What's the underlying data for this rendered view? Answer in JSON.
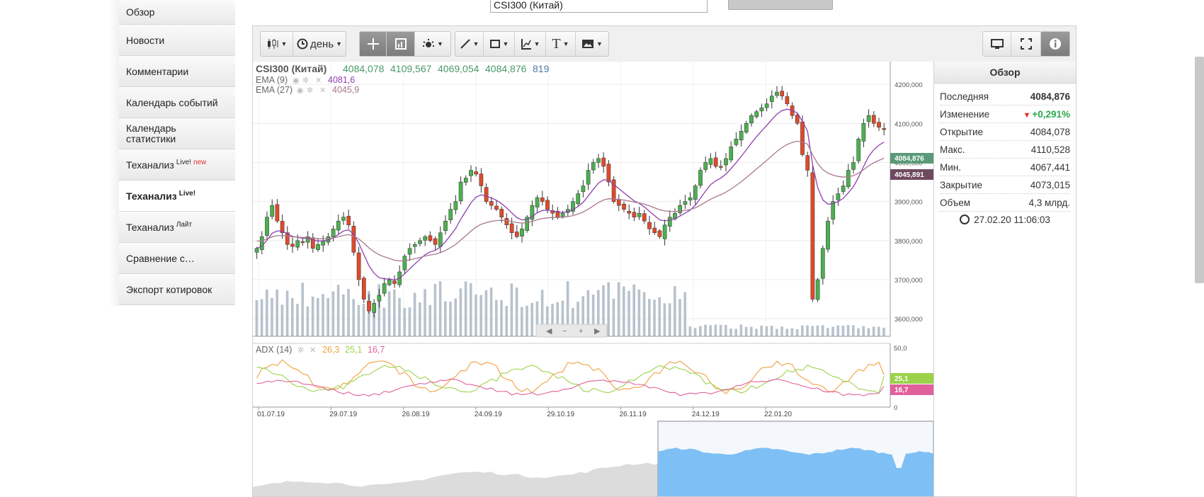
{
  "nav": {
    "items": [
      {
        "label": "Обзор"
      },
      {
        "label": "Новости"
      },
      {
        "label": "Комментарии"
      },
      {
        "label": "Календарь событий"
      },
      {
        "label": "Календарь статистики"
      },
      {
        "label": "Теханализ",
        "sup": "Live!",
        "badge": "new"
      },
      {
        "label": "Теханализ",
        "sup": "Live!",
        "active": true
      },
      {
        "label": "Теханализ",
        "sup": "Лайт"
      },
      {
        "label": "Сравнение с…"
      },
      {
        "label": "Экспорт котировок"
      }
    ]
  },
  "top": {
    "search_value": "CSI300 (Китай)"
  },
  "toolbar": {
    "period_label": "день",
    "text_tool": "T"
  },
  "legend": {
    "symbol": "CSI300 (Китай)",
    "open": "4084,078",
    "high": "4109,567",
    "low": "4069,054",
    "close": "4084,876",
    "volume": "819",
    "ema1_label": "EMA (9)",
    "ema1_value": "4081,6",
    "ema2_label": "EMA (27)",
    "ema2_value": "4045,9",
    "adx_label": "ADX (14)",
    "adx_v1": "26,3",
    "adx_v2": "25,1",
    "adx_v3": "16,7"
  },
  "price_tags": {
    "last": "4084,876",
    "ema": "4045,891",
    "adx_green": "25,1",
    "adx_pink": "16,7"
  },
  "overview": {
    "title": "Обзор",
    "rows": [
      {
        "label": "Последняя",
        "value": "4084,876",
        "style": "b"
      },
      {
        "label": "Изменение",
        "value": "+0,291%",
        "style": "chg"
      },
      {
        "label": "Открытие",
        "value": "4084,078"
      },
      {
        "label": "Макс.",
        "value": "4110,528"
      },
      {
        "label": "Мин.",
        "value": "4067,441"
      },
      {
        "label": "Закрытие",
        "value": "4073,015"
      },
      {
        "label": "Объем",
        "value": "4,3 млрд."
      }
    ],
    "time": "27.02.20 11:06:03"
  },
  "colors": {
    "up": "#4caf50",
    "down": "#e04a2a",
    "ema_fast": "#8e3fae",
    "ema_slow": "#a8788e",
    "adx": "#f0a040",
    "di_plus": "#9bd24a",
    "di_minus": "#e0609a",
    "volume": "#b7c2cc",
    "navigator": "#7ec0f5"
  },
  "chart_data": {
    "type": "candlestick",
    "title": "CSI300 (Китай)",
    "x_tick_labels": [
      "01.07.19",
      "29.07.19",
      "26.08.19",
      "24.09.19",
      "29.10.19",
      "26.11.19",
      "24.12.19",
      "22.01.20"
    ],
    "y_tick_labels": [
      "3600,000",
      "3700,000",
      "3800,000",
      "3900,000",
      "4000,000",
      "4100,000",
      "4200,000"
    ],
    "ylim": [
      3555,
      4240
    ],
    "adx_tick_labels": [
      "0",
      "50,0"
    ],
    "close_series": [
      3780,
      3810,
      3860,
      3890,
      3850,
      3820,
      3790,
      3785,
      3800,
      3795,
      3810,
      3780,
      3790,
      3800,
      3810,
      3830,
      3850,
      3860,
      3840,
      3770,
      3700,
      3650,
      3620,
      3640,
      3660,
      3690,
      3700,
      3690,
      3720,
      3760,
      3780,
      3790,
      3800,
      3810,
      3800,
      3790,
      3820,
      3850,
      3880,
      3900,
      3950,
      3960,
      3980,
      3970,
      3940,
      3900,
      3890,
      3880,
      3860,
      3840,
      3820,
      3810,
      3830,
      3860,
      3890,
      3910,
      3900,
      3880,
      3870,
      3860,
      3870,
      3880,
      3900,
      3920,
      3940,
      3980,
      4000,
      4010,
      3990,
      3950,
      3900,
      3890,
      3880,
      3870,
      3860,
      3870,
      3850,
      3830,
      3820,
      3810,
      3840,
      3860,
      3870,
      3890,
      3900,
      3910,
      3940,
      3980,
      4000,
      4010,
      3990,
      3990,
      4010,
      4040,
      4060,
      4080,
      4100,
      4120,
      4130,
      4140,
      4150,
      4170,
      4180,
      4170,
      4150,
      4120,
      4100,
      4020,
      3980,
      3650,
      3700,
      3780,
      3850,
      3900,
      3920,
      3940,
      3980,
      4000,
      4060,
      4100,
      4120,
      4100,
      4090,
      4084
    ],
    "ema9_last": 4081.6,
    "ema27_last": 4045.9,
    "adx": {
      "adx": 26.3,
      "di_plus": 25.1,
      "di_minus": 16.7
    }
  }
}
